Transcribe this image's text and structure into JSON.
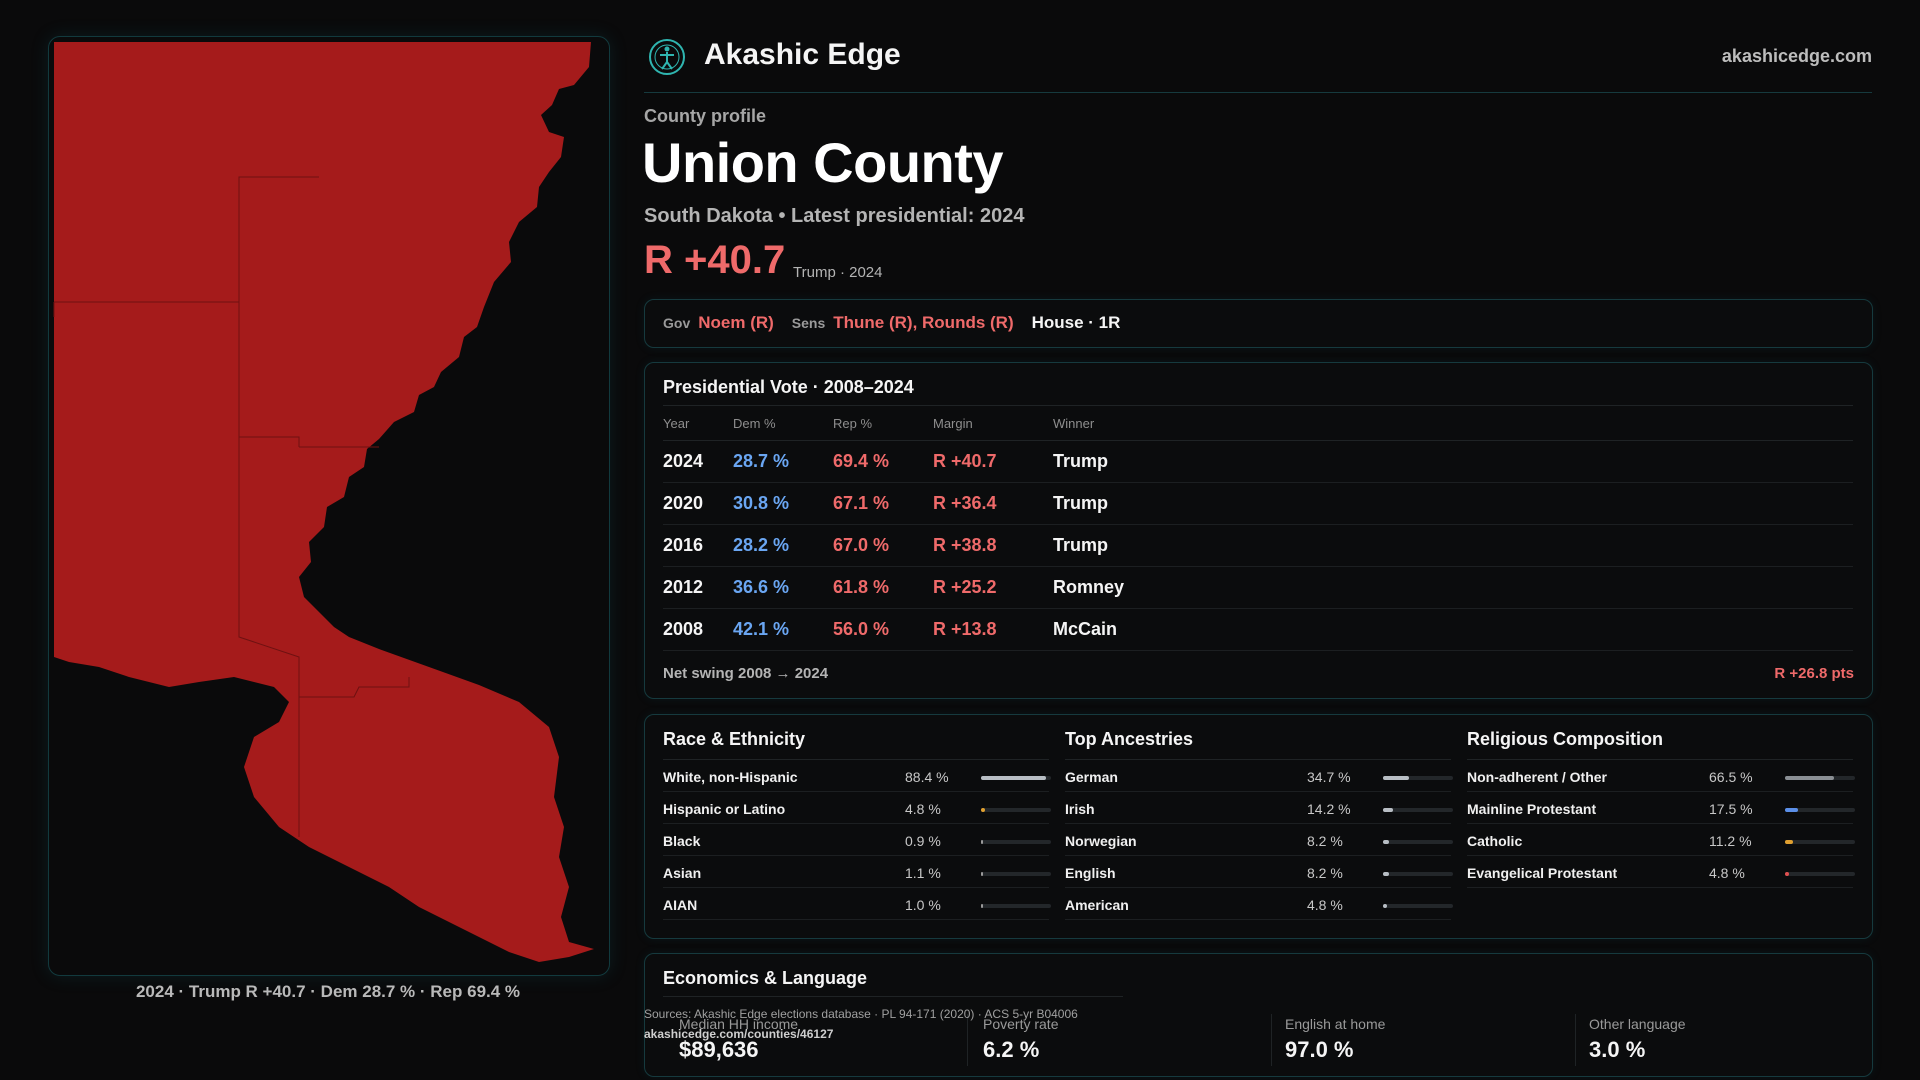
{
  "brand": {
    "name": "Akashic Edge",
    "site": "akashicedge.com",
    "logo_icon": "compass-person-icon"
  },
  "profile": {
    "eyebrow": "County profile",
    "title": "Union County",
    "subtitle": "South Dakota • Latest presidential: 2024",
    "margin": "R +40.7",
    "margin_note": "Trump · 2024"
  },
  "officials": {
    "gov_label": "Gov",
    "gov": "Noem (R)",
    "sens_label": "Sens",
    "sens": "Thune (R), Rounds (R)",
    "house": "House · 1R"
  },
  "presidential": {
    "title": "Presidential Vote · 2008–2024",
    "headers": [
      "Year",
      "Dem %",
      "Rep %",
      "Margin",
      "Winner"
    ],
    "rows": [
      {
        "year": "2024",
        "dem": "28.7 %",
        "rep": "69.4 %",
        "margin": "R +40.7",
        "winner": "Trump"
      },
      {
        "year": "2020",
        "dem": "30.8 %",
        "rep": "67.1 %",
        "margin": "R +36.4",
        "winner": "Trump"
      },
      {
        "year": "2016",
        "dem": "28.2 %",
        "rep": "67.0 %",
        "margin": "R +38.8",
        "winner": "Trump"
      },
      {
        "year": "2012",
        "dem": "36.6 %",
        "rep": "61.8 %",
        "margin": "R +25.2",
        "winner": "Romney"
      },
      {
        "year": "2008",
        "dem": "42.1 %",
        "rep": "56.0 %",
        "margin": "R +13.8",
        "winner": "McCain"
      }
    ],
    "swing_label": "Net swing 2008 → 2024",
    "swing_value": "R +26.8 pts"
  },
  "race": {
    "title": "Race & Ethnicity",
    "items": [
      {
        "name": "White, non-Hispanic",
        "value": "88.4 %",
        "pct": 88.4,
        "color": "#b8bec4"
      },
      {
        "name": "Hispanic or Latino",
        "value": "4.8 %",
        "pct": 4.8,
        "color": "#e0a030"
      },
      {
        "name": "Black",
        "value": "0.9 %",
        "pct": 0.9,
        "color": "#9a9a9a"
      },
      {
        "name": "Asian",
        "value": "1.1 %",
        "pct": 1.1,
        "color": "#9a9a9a"
      },
      {
        "name": "AIAN",
        "value": "1.0 %",
        "pct": 1.0,
        "color": "#9a9a9a"
      }
    ]
  },
  "ancestry": {
    "title": "Top Ancestries",
    "items": [
      {
        "name": "German",
        "value": "34.7 %",
        "pct": 34.7,
        "color": "#b8bec4"
      },
      {
        "name": "Irish",
        "value": "14.2 %",
        "pct": 14.2,
        "color": "#b8bec4"
      },
      {
        "name": "Norwegian",
        "value": "8.2 %",
        "pct": 8.2,
        "color": "#b8bec4"
      },
      {
        "name": "English",
        "value": "8.2 %",
        "pct": 8.2,
        "color": "#b8bec4"
      },
      {
        "name": "American",
        "value": "4.8 %",
        "pct": 4.8,
        "color": "#b8bec4"
      }
    ]
  },
  "religion": {
    "title": "Religious Composition",
    "items": [
      {
        "name": "Non-adherent / Other",
        "value": "66.5 %",
        "pct": 66.5,
        "color": "#8a8f94"
      },
      {
        "name": "Mainline Protestant",
        "value": "17.5 %",
        "pct": 17.5,
        "color": "#5b8fe8"
      },
      {
        "name": "Catholic",
        "value": "11.2 %",
        "pct": 11.2,
        "color": "#e0a030"
      },
      {
        "name": "Evangelical Protestant",
        "value": "4.8 %",
        "pct": 4.8,
        "color": "#e05050"
      }
    ]
  },
  "economics": {
    "title": "Economics & Language",
    "items": [
      {
        "label": "Median HH income",
        "value": "$89,636"
      },
      {
        "label": "Poverty rate",
        "value": "6.2 %"
      },
      {
        "label": "English at home",
        "value": "97.0 %"
      },
      {
        "label": "Other language",
        "value": "3.0 %"
      }
    ]
  },
  "sources": {
    "text": "Sources: Akashic Edge elections database · PL 94-171 (2020) · ACS 5-yr B04006",
    "url": "akashicedge.com/counties/46127"
  },
  "map": {
    "caption": "2024 · Trump R +40.7 · Dem 28.7 % · Rep 69.4 %",
    "fill_color": "#a51b1b"
  }
}
